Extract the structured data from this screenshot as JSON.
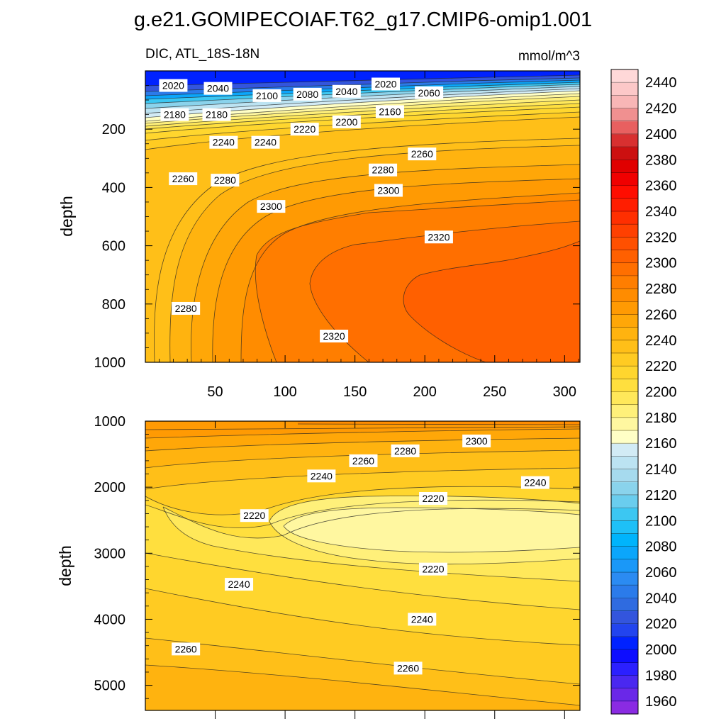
{
  "chart_data": {
    "type": "contour",
    "title": "g.e21.GOMIPECOIAF.T62_g17.CMIP6-omip1.001",
    "variable_label": "DIC, ATL_18S-18N",
    "units_label": "mmol/m^3",
    "colorbar": {
      "levels": [
        1950,
        1960,
        1970,
        1980,
        1990,
        2000,
        2010,
        2020,
        2030,
        2040,
        2050,
        2060,
        2070,
        2080,
        2090,
        2100,
        2110,
        2120,
        2130,
        2140,
        2150,
        2160,
        2170,
        2180,
        2190,
        2200,
        2210,
        2220,
        2230,
        2240,
        2250,
        2260,
        2270,
        2280,
        2290,
        2300,
        2310,
        2320,
        2330,
        2340,
        2350,
        2360,
        2370,
        2380,
        2390,
        2400,
        2410,
        2420,
        2430,
        2440,
        2450
      ],
      "tick_labels": [
        "1960",
        "1980",
        "2000",
        "2020",
        "2040",
        "2060",
        "2080",
        "2100",
        "2120",
        "2140",
        "2160",
        "2180",
        "2200",
        "2220",
        "2240",
        "2260",
        "2280",
        "2300",
        "2320",
        "2340",
        "2360",
        "2380",
        "2400",
        "2420",
        "2440"
      ],
      "tick_values": [
        1960,
        1980,
        2000,
        2020,
        2040,
        2060,
        2080,
        2100,
        2120,
        2140,
        2160,
        2180,
        2200,
        2220,
        2240,
        2260,
        2280,
        2300,
        2320,
        2340,
        2360,
        2380,
        2400,
        2420,
        2440
      ],
      "colors": [
        "#8a2be2",
        "#6a28e8",
        "#4a28f0",
        "#2b20ff",
        "#0d0dff",
        "#0022ff",
        "#2244ee",
        "#3355dd",
        "#2f6be0",
        "#2b7bea",
        "#2b8bf2",
        "#1a98f8",
        "#0ba6fb",
        "#00b4fc",
        "#1ec0f7",
        "#3cc7f2",
        "#6acdee",
        "#8ad3ec",
        "#a6daee",
        "#bce3f2",
        "#d2ebf5",
        "#ffffc6",
        "#fff7a0",
        "#fff07a",
        "#ffe85a",
        "#ffdf3e",
        "#ffd62e",
        "#ffcb22",
        "#ffbf18",
        "#ffb30f",
        "#ffa708",
        "#ff9a03",
        "#ff8c00",
        "#ff7e00",
        "#ff6f00",
        "#ff6000",
        "#ff5000",
        "#ff4000",
        "#ff2f00",
        "#ff1e00",
        "#ff0d00",
        "#f00000",
        "#e00000",
        "#cc1010",
        "#d83030",
        "#e86060",
        "#f09090",
        "#f8b6b6",
        "#fcc8c8",
        "#ffd8d8"
      ]
    },
    "top_panel": {
      "xlabel": "",
      "ylabel": "depth",
      "xlim": [
        0,
        311
      ],
      "ylim": [
        1000,
        0
      ],
      "x_ticks": [
        50,
        100,
        150,
        200,
        250,
        300
      ],
      "x_tick_labels": [
        "50",
        "100",
        "150",
        "200",
        "250",
        "300"
      ],
      "y_ticks": [
        200,
        400,
        600,
        800,
        1000
      ],
      "y_tick_labels": [
        "200",
        "400",
        "600",
        "800",
        "1000"
      ],
      "contour_labels": [
        {
          "text": "2020",
          "x": 20,
          "y": 50
        },
        {
          "text": "2040",
          "x": 52,
          "y": 60
        },
        {
          "text": "2100",
          "x": 87,
          "y": 85
        },
        {
          "text": "2080",
          "x": 116,
          "y": 80
        },
        {
          "text": "2040",
          "x": 144,
          "y": 70
        },
        {
          "text": "2020",
          "x": 172,
          "y": 45
        },
        {
          "text": "2060",
          "x": 203,
          "y": 75
        },
        {
          "text": "2180",
          "x": 21,
          "y": 150
        },
        {
          "text": "2180",
          "x": 51,
          "y": 150
        },
        {
          "text": "2160",
          "x": 175,
          "y": 140
        },
        {
          "text": "2200",
          "x": 144,
          "y": 175
        },
        {
          "text": "2220",
          "x": 114,
          "y": 200
        },
        {
          "text": "2240",
          "x": 56,
          "y": 245
        },
        {
          "text": "2240",
          "x": 86,
          "y": 245
        },
        {
          "text": "2260",
          "x": 198,
          "y": 285
        },
        {
          "text": "2260",
          "x": 27,
          "y": 370
        },
        {
          "text": "2280",
          "x": 57,
          "y": 375
        },
        {
          "text": "2280",
          "x": 170,
          "y": 340
        },
        {
          "text": "2300",
          "x": 174,
          "y": 410
        },
        {
          "text": "2300",
          "x": 90,
          "y": 465
        },
        {
          "text": "2320",
          "x": 210,
          "y": 570
        },
        {
          "text": "2280",
          "x": 29,
          "y": 815
        },
        {
          "text": "2320",
          "x": 135,
          "y": 910
        }
      ]
    },
    "bottom_panel": {
      "xlabel": "",
      "ylabel": "depth",
      "xlim": [
        0,
        311
      ],
      "ylim": [
        5380,
        1000
      ],
      "x_ticks": [
        50,
        100,
        150,
        200,
        250,
        300
      ],
      "y_ticks": [
        1000,
        2000,
        3000,
        4000,
        5000
      ],
      "y_tick_labels": [
        "1000",
        "2000",
        "3000",
        "4000",
        "5000"
      ],
      "contour_labels": [
        {
          "text": "2300",
          "x": 237,
          "y": 1300
        },
        {
          "text": "2280",
          "x": 186,
          "y": 1450
        },
        {
          "text": "2260",
          "x": 156,
          "y": 1600
        },
        {
          "text": "2240",
          "x": 126,
          "y": 1830
        },
        {
          "text": "2240",
          "x": 279,
          "y": 1930
        },
        {
          "text": "2220",
          "x": 206,
          "y": 2170
        },
        {
          "text": "2220",
          "x": 78,
          "y": 2430
        },
        {
          "text": "2220",
          "x": 206,
          "y": 3240
        },
        {
          "text": "2240",
          "x": 67,
          "y": 3470
        },
        {
          "text": "2240",
          "x": 198,
          "y": 4000
        },
        {
          "text": "2260",
          "x": 29,
          "y": 4450
        },
        {
          "text": "2260",
          "x": 188,
          "y": 4740
        }
      ]
    }
  }
}
